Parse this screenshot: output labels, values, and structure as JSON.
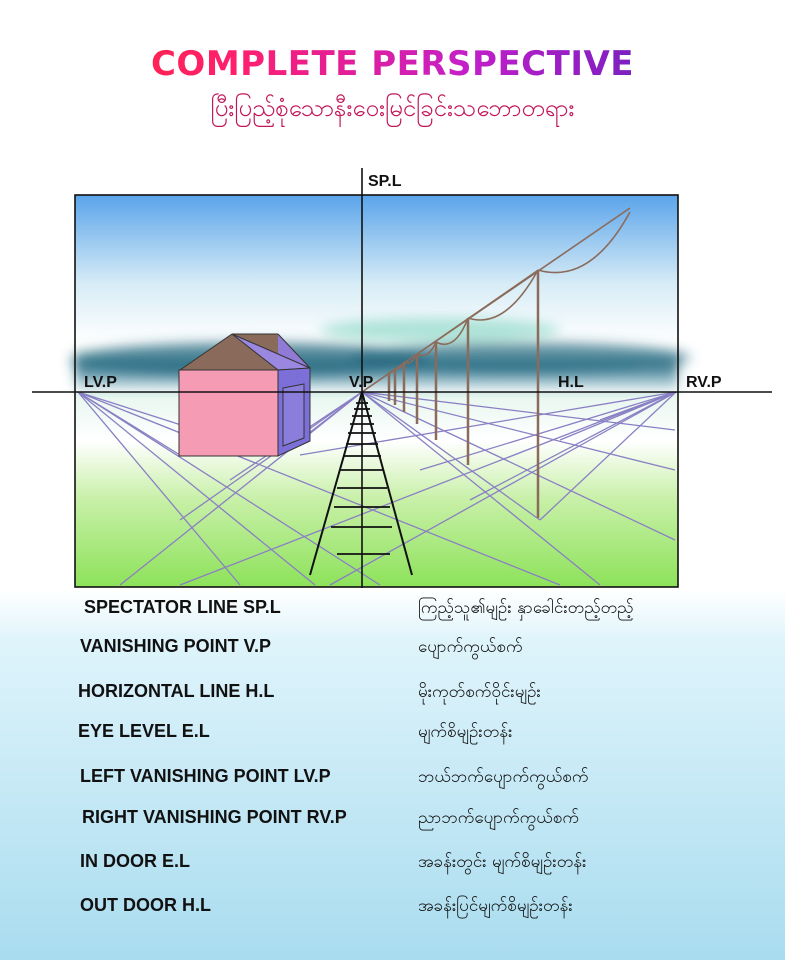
{
  "header": {
    "title": "COMPLETE PERSPECTIVE",
    "subtitle": "ပြီးပြည့်စုံသောနီးဝေးမြင်ခြင်းသဘောတရား"
  },
  "diagram": {
    "labels": {
      "spl": "SP.L",
      "lvp": "LV.P",
      "vp": "V.P",
      "hl": "H.L",
      "rvp": "RV.P"
    },
    "colors": {
      "sky_top": "#5aa4ea",
      "grass": "#9be36a",
      "wall_front": "#f59bb4",
      "wall_side": "#7c6fd8",
      "roof_front": "#8a6a5a",
      "roof_side": "#8f7ad6",
      "pole": "#8b6b5b",
      "guide_line": "#8a7fc4"
    }
  },
  "legend": [
    {
      "en": "SPECTATOR LINE  SP.L",
      "my": "ကြည့်သူ၏မျဉ်း နှာခေါင်းတည့်တည့်"
    },
    {
      "en": "VANISHING POINT V.P",
      "my": "ပျောက်ကွယ်စက်"
    },
    {
      "en": "HORIZONTAL LINE    H.L",
      "my": "မိုးကုတ်စက်ဝိုင်းမျဉ်း"
    },
    {
      "en": "EYE LEVEL  E.L",
      "my": "မျက်စိမျဉ်းတန်း"
    },
    {
      "en": "LEFT VANISHING POINT    LV.P",
      "my": "ဘယ်ဘက်ပျောက်ကွယ်စက်"
    },
    {
      "en": "RIGHT VANISHING POINT  RV.P",
      "my": "ညာဘက်ပျောက်ကွယ်စက်"
    },
    {
      "en": "IN DOOR    E.L",
      "my": "အခန်းတွင်း  မျက်စိမျဉ်းတန်း"
    },
    {
      "en": "OUT DOOR  H.L",
      "my": "အခန်းပြင်မျက်စိမျဉ်းတန်း"
    }
  ]
}
